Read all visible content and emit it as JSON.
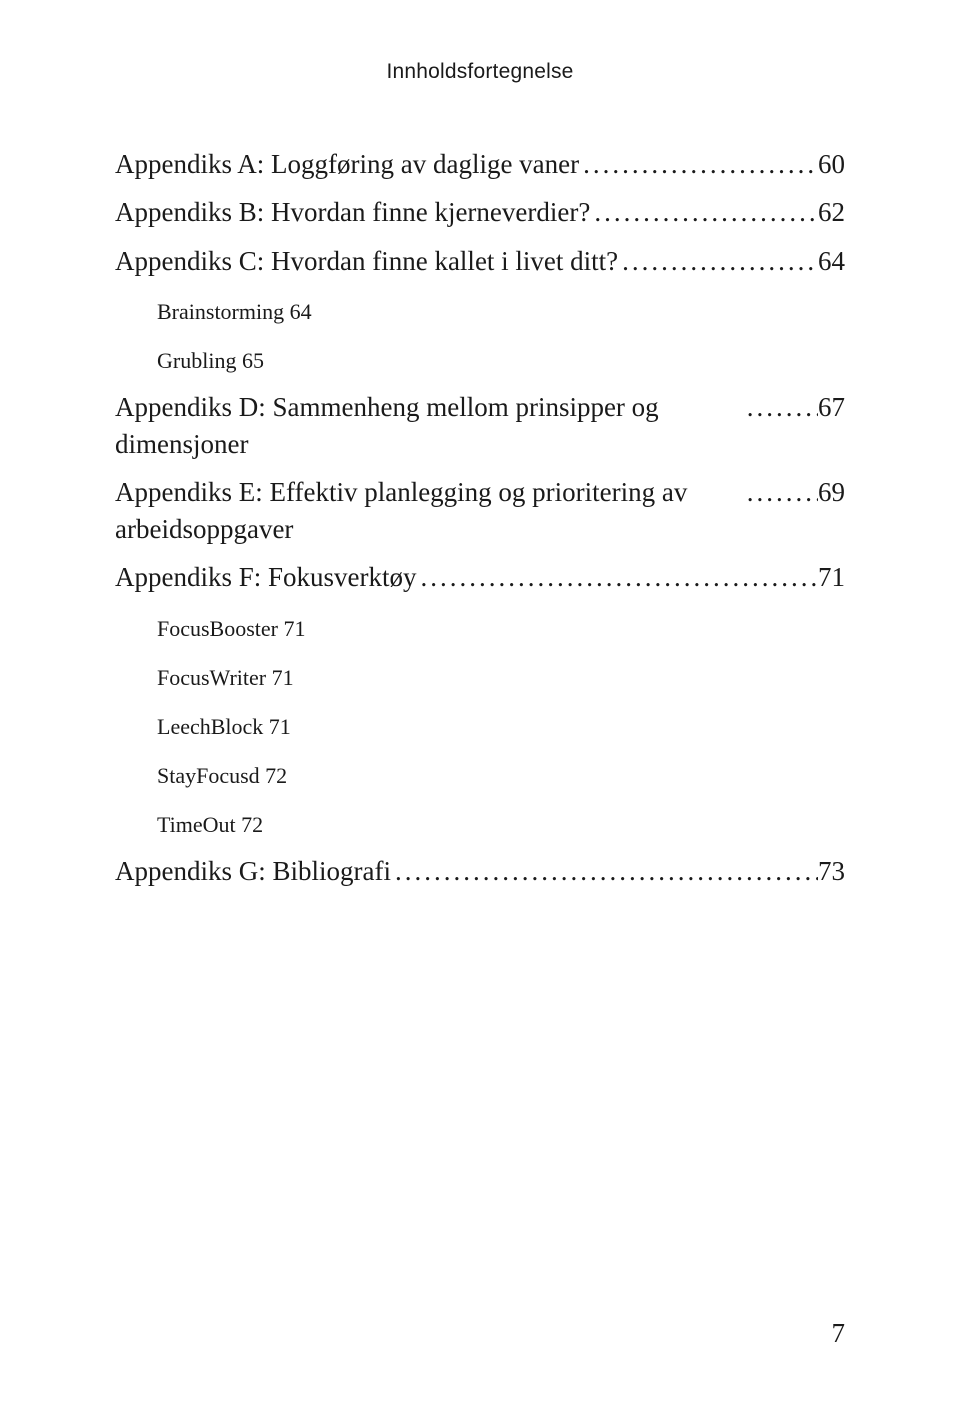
{
  "runningHead": "Innholdsfortegnelse",
  "entries": [
    {
      "level": 1,
      "title": "Appendiks A: Loggføring av daglige vaner",
      "page": "60",
      "leaders": true
    },
    {
      "level": 1,
      "title": "Appendiks B: Hvordan finne kjerneverdier?",
      "page": "62",
      "leaders": true
    },
    {
      "level": 1,
      "title": "Appendiks C: Hvordan finne kallet i livet ditt?",
      "page": "64",
      "leaders": true
    },
    {
      "level": 2,
      "title": "Brainstorming 64",
      "page": "",
      "leaders": false
    },
    {
      "level": 2,
      "title": "Grubling 65",
      "page": "",
      "leaders": false
    },
    {
      "level": 1,
      "title": "Appendiks D: Sammenheng mellom prinsipper og dimensjoner",
      "page": "67",
      "leaders": true
    },
    {
      "level": 1,
      "title": "Appendiks E: Effektiv planlegging og prioritering av arbeidsoppgaver",
      "page": "69",
      "leaders": true
    },
    {
      "level": 1,
      "title": "Appendiks F: Fokusverktøy",
      "page": "71",
      "leaders": true
    },
    {
      "level": 2,
      "title": "FocusBooster 71",
      "page": "",
      "leaders": false
    },
    {
      "level": 2,
      "title": "FocusWriter 71",
      "page": "",
      "leaders": false
    },
    {
      "level": 2,
      "title": "LeechBlock 71",
      "page": "",
      "leaders": false
    },
    {
      "level": 2,
      "title": "StayFocusd 72",
      "page": "",
      "leaders": false
    },
    {
      "level": 2,
      "title": "TimeOut 72",
      "page": "",
      "leaders": false
    },
    {
      "level": 1,
      "title": "Appendiks G: Bibliografi",
      "page": "73",
      "leaders": true
    }
  ],
  "pageNumber": "7",
  "leaderFill": "...................................................................................................."
}
